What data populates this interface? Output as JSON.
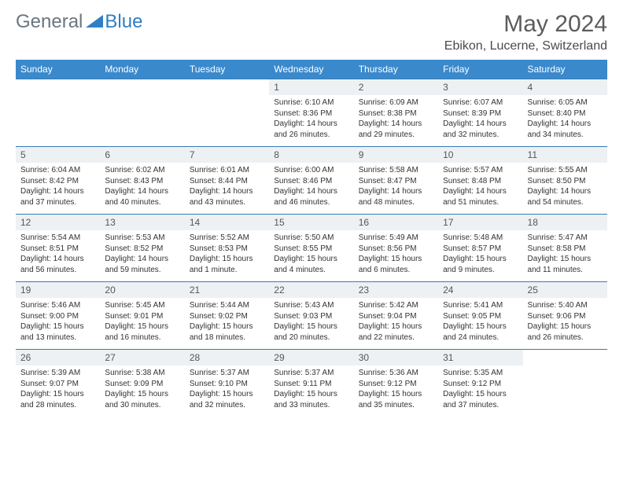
{
  "logo": {
    "general": "General",
    "blue": "Blue"
  },
  "month_title": "May 2024",
  "location": "Ebikon, Lucerne, Switzerland",
  "colors": {
    "header_bg": "#3a89cc",
    "header_text": "#ffffff",
    "daynum_bg": "#eef1f3",
    "row_border": "#3a7bb0",
    "logo_general": "#6b7680",
    "logo_blue": "#2f7fc4"
  },
  "weekdays": [
    "Sunday",
    "Monday",
    "Tuesday",
    "Wednesday",
    "Thursday",
    "Friday",
    "Saturday"
  ],
  "weeks": [
    [
      null,
      null,
      null,
      {
        "n": "1",
        "sr": "6:10 AM",
        "ss": "8:36 PM",
        "dl": "14 hours and 26 minutes."
      },
      {
        "n": "2",
        "sr": "6:09 AM",
        "ss": "8:38 PM",
        "dl": "14 hours and 29 minutes."
      },
      {
        "n": "3",
        "sr": "6:07 AM",
        "ss": "8:39 PM",
        "dl": "14 hours and 32 minutes."
      },
      {
        "n": "4",
        "sr": "6:05 AM",
        "ss": "8:40 PM",
        "dl": "14 hours and 34 minutes."
      }
    ],
    [
      {
        "n": "5",
        "sr": "6:04 AM",
        "ss": "8:42 PM",
        "dl": "14 hours and 37 minutes."
      },
      {
        "n": "6",
        "sr": "6:02 AM",
        "ss": "8:43 PM",
        "dl": "14 hours and 40 minutes."
      },
      {
        "n": "7",
        "sr": "6:01 AM",
        "ss": "8:44 PM",
        "dl": "14 hours and 43 minutes."
      },
      {
        "n": "8",
        "sr": "6:00 AM",
        "ss": "8:46 PM",
        "dl": "14 hours and 46 minutes."
      },
      {
        "n": "9",
        "sr": "5:58 AM",
        "ss": "8:47 PM",
        "dl": "14 hours and 48 minutes."
      },
      {
        "n": "10",
        "sr": "5:57 AM",
        "ss": "8:48 PM",
        "dl": "14 hours and 51 minutes."
      },
      {
        "n": "11",
        "sr": "5:55 AM",
        "ss": "8:50 PM",
        "dl": "14 hours and 54 minutes."
      }
    ],
    [
      {
        "n": "12",
        "sr": "5:54 AM",
        "ss": "8:51 PM",
        "dl": "14 hours and 56 minutes."
      },
      {
        "n": "13",
        "sr": "5:53 AM",
        "ss": "8:52 PM",
        "dl": "14 hours and 59 minutes."
      },
      {
        "n": "14",
        "sr": "5:52 AM",
        "ss": "8:53 PM",
        "dl": "15 hours and 1 minute."
      },
      {
        "n": "15",
        "sr": "5:50 AM",
        "ss": "8:55 PM",
        "dl": "15 hours and 4 minutes."
      },
      {
        "n": "16",
        "sr": "5:49 AM",
        "ss": "8:56 PM",
        "dl": "15 hours and 6 minutes."
      },
      {
        "n": "17",
        "sr": "5:48 AM",
        "ss": "8:57 PM",
        "dl": "15 hours and 9 minutes."
      },
      {
        "n": "18",
        "sr": "5:47 AM",
        "ss": "8:58 PM",
        "dl": "15 hours and 11 minutes."
      }
    ],
    [
      {
        "n": "19",
        "sr": "5:46 AM",
        "ss": "9:00 PM",
        "dl": "15 hours and 13 minutes."
      },
      {
        "n": "20",
        "sr": "5:45 AM",
        "ss": "9:01 PM",
        "dl": "15 hours and 16 minutes."
      },
      {
        "n": "21",
        "sr": "5:44 AM",
        "ss": "9:02 PM",
        "dl": "15 hours and 18 minutes."
      },
      {
        "n": "22",
        "sr": "5:43 AM",
        "ss": "9:03 PM",
        "dl": "15 hours and 20 minutes."
      },
      {
        "n": "23",
        "sr": "5:42 AM",
        "ss": "9:04 PM",
        "dl": "15 hours and 22 minutes."
      },
      {
        "n": "24",
        "sr": "5:41 AM",
        "ss": "9:05 PM",
        "dl": "15 hours and 24 minutes."
      },
      {
        "n": "25",
        "sr": "5:40 AM",
        "ss": "9:06 PM",
        "dl": "15 hours and 26 minutes."
      }
    ],
    [
      {
        "n": "26",
        "sr": "5:39 AM",
        "ss": "9:07 PM",
        "dl": "15 hours and 28 minutes."
      },
      {
        "n": "27",
        "sr": "5:38 AM",
        "ss": "9:09 PM",
        "dl": "15 hours and 30 minutes."
      },
      {
        "n": "28",
        "sr": "5:37 AM",
        "ss": "9:10 PM",
        "dl": "15 hours and 32 minutes."
      },
      {
        "n": "29",
        "sr": "5:37 AM",
        "ss": "9:11 PM",
        "dl": "15 hours and 33 minutes."
      },
      {
        "n": "30",
        "sr": "5:36 AM",
        "ss": "9:12 PM",
        "dl": "15 hours and 35 minutes."
      },
      {
        "n": "31",
        "sr": "5:35 AM",
        "ss": "9:12 PM",
        "dl": "15 hours and 37 minutes."
      },
      null
    ]
  ],
  "labels": {
    "sunrise": "Sunrise:",
    "sunset": "Sunset:",
    "daylight": "Daylight:"
  }
}
